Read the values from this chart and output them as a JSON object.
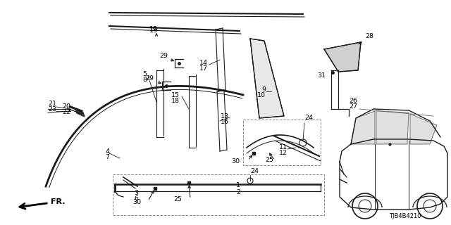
{
  "diagram_code": "TJB4B4210",
  "bg_color": "#ffffff",
  "line_color": "#1a1a1a",
  "fig_width": 6.4,
  "fig_height": 3.2
}
